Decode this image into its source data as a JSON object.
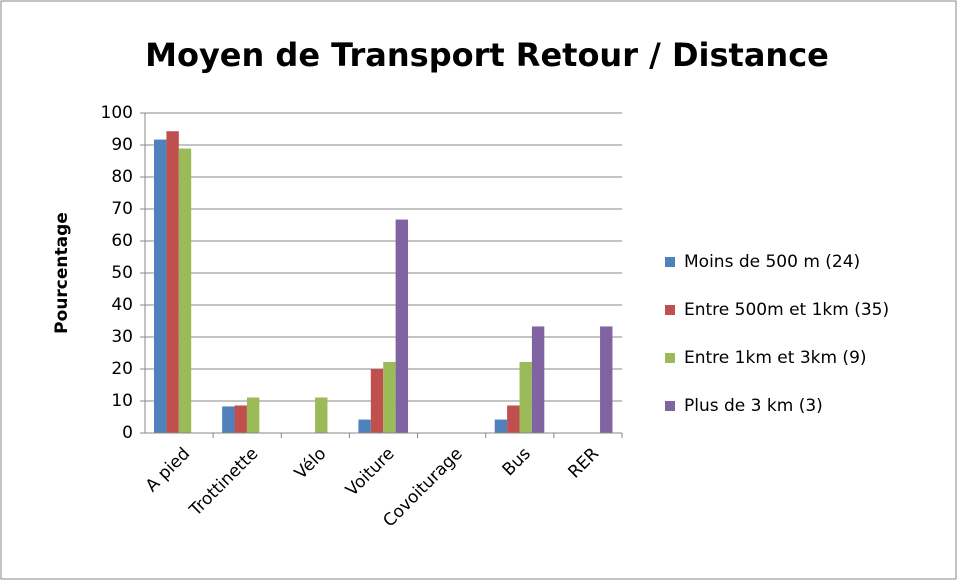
{
  "chart_data": {
    "type": "bar",
    "title": "Moyen de Transport Retour / Distance",
    "y_label": "Pourcentage",
    "categories": [
      "A pied",
      "Trottinette",
      "Vélo",
      "Voiture",
      "Covoiturage",
      "Bus",
      "RER"
    ],
    "series": [
      {
        "name": "Moins de 500 m (24)",
        "color": "#4f81bd",
        "values": [
          91.7,
          8.3,
          0,
          4.2,
          0,
          4.2,
          0
        ]
      },
      {
        "name": "Entre 500m et 1km (35)",
        "color": "#c0504d",
        "values": [
          94.3,
          8.6,
          0,
          20,
          0,
          8.6,
          0
        ]
      },
      {
        "name": "Entre 1km et 3km (9)",
        "color": "#9bbb59",
        "values": [
          88.9,
          11.1,
          11.1,
          22.2,
          0,
          22.2,
          0
        ]
      },
      {
        "name": "Plus de 3 km (3)",
        "color": "#8064a2",
        "values": [
          0,
          0,
          0,
          66.7,
          0,
          33.3,
          33.3
        ]
      }
    ],
    "ylim": [
      0,
      100
    ],
    "yticks": [
      0,
      10,
      20,
      30,
      40,
      50,
      60,
      70,
      80,
      90,
      100
    ],
    "grid": true,
    "legend": "right"
  }
}
